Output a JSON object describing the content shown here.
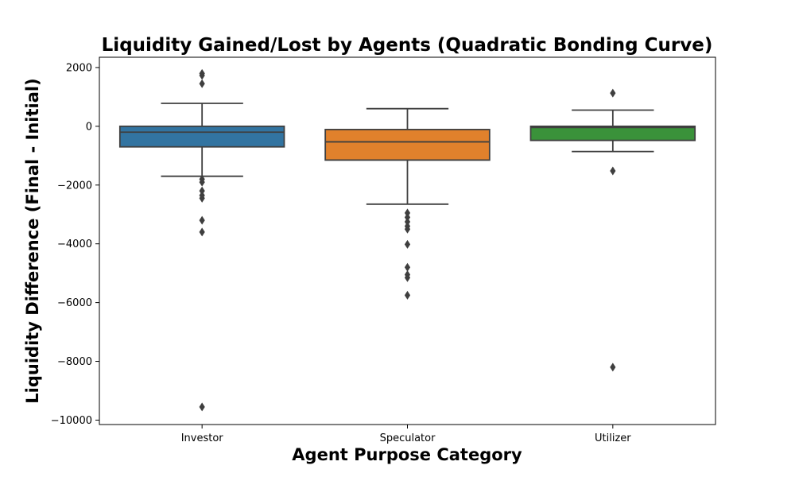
{
  "chart_data": {
    "type": "box",
    "title": "Liquidity Gained/Lost by Agents (Quadratic Bonding Curve)",
    "xlabel": "Agent Purpose Category",
    "ylabel": "Liquidity Difference (Final - Initial)",
    "ylim": [
      -10150,
      2350
    ],
    "yticks": [
      2000,
      0,
      -2000,
      -4000,
      -6000,
      -8000,
      -10000
    ],
    "ytick_labels": [
      "2000",
      "0",
      "−2000",
      "−4000",
      "−6000",
      "−8000",
      "−10000"
    ],
    "categories": [
      "Investor",
      "Speculator",
      "Utilizer"
    ],
    "colors": [
      "#3274a1",
      "#e1812c",
      "#3a923a"
    ],
    "edge_color": "#3f3f3f",
    "grid": false,
    "series": [
      {
        "whisker_low": -1700,
        "q1": -700,
        "median": -200,
        "q3": 0,
        "whisker_high": 780,
        "outliers": [
          1800,
          1730,
          1450,
          -1800,
          -1900,
          -2200,
          -2350,
          -2450,
          -3200,
          -3600,
          -9550
        ]
      },
      {
        "whisker_low": -2650,
        "q1": -1150,
        "median": -530,
        "q3": -110,
        "whisker_high": 600,
        "outliers": [
          -2950,
          -3100,
          -3250,
          -3400,
          -3500,
          -4020,
          -4800,
          -5050,
          -5150,
          -5750
        ]
      },
      {
        "whisker_low": -860,
        "q1": -480,
        "median": -40,
        "q3": 0,
        "whisker_high": 550,
        "outliers": [
          1130,
          -1520,
          -8200
        ]
      }
    ]
  }
}
